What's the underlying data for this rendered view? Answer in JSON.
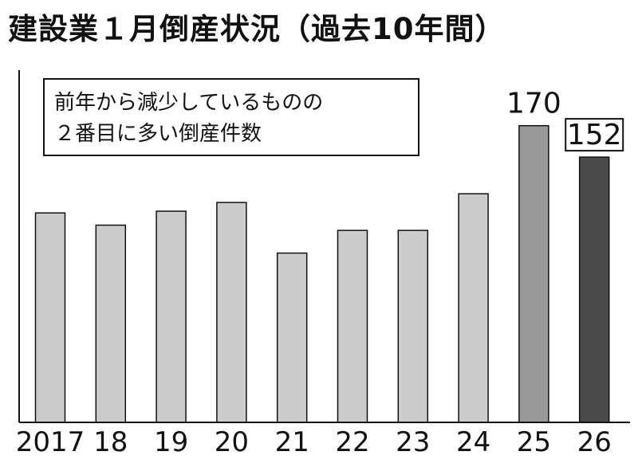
{
  "title": "建設業１月倒産状況（過去10年間）",
  "annotation": {
    "line1": "前年から減少しているものの",
    "line2": "２番目に多い倒産件数"
  },
  "colors": {
    "bar_default": "#cccccc",
    "bar_2025": "#999999",
    "bar_2026": "#4a4a4a",
    "axis": "#111111"
  },
  "chart_data": {
    "type": "bar",
    "title": "建設業１月倒産状況（過去10年間）",
    "categories": [
      "2017",
      "18",
      "19",
      "20",
      "21",
      "22",
      "23",
      "24",
      "25",
      "26"
    ],
    "values": [
      120,
      113,
      121,
      126,
      97,
      110,
      110,
      131,
      170,
      152
    ],
    "data_labels": {
      "25": "170",
      "26": "152"
    },
    "xlabel": "",
    "ylabel": "",
    "ylim": [
      0,
      200
    ],
    "grid": false,
    "legend": "none"
  }
}
